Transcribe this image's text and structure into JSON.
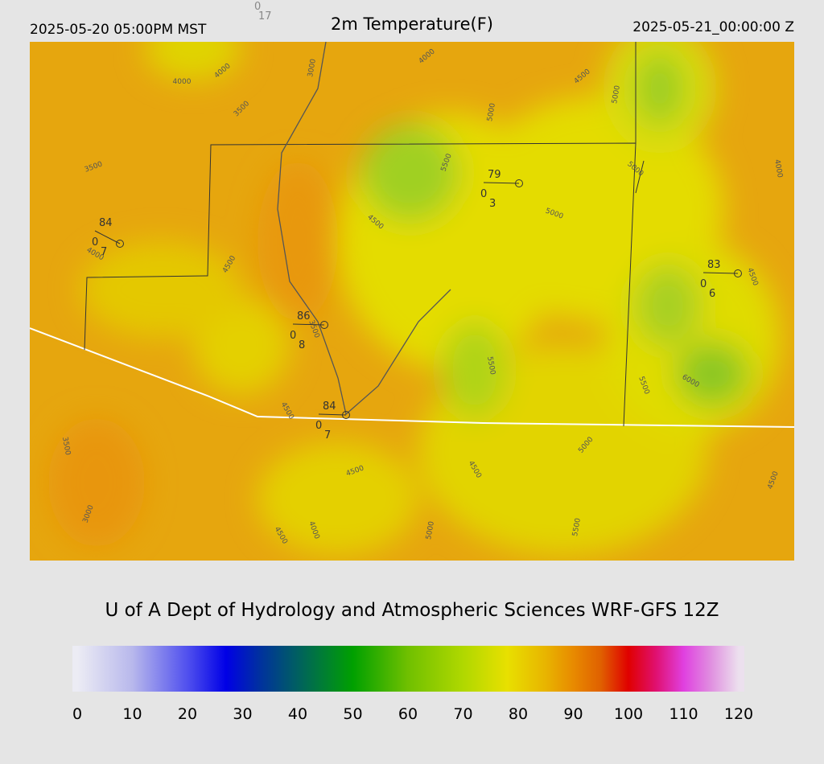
{
  "header": {
    "left": "2025-05-20 05:00PM MST",
    "title": "2m Temperature(F)",
    "right": "2025-05-21_00:00:00 Z",
    "top_small_a": "0",
    "top_small_b": "17"
  },
  "contour_labels": [
    "4000",
    "4000",
    "3000",
    "4000",
    "3500",
    "3500",
    "5500",
    "4500",
    "5000",
    "5000",
    "5000",
    "4000",
    "4000",
    "4500",
    "4500",
    "5000",
    "4500",
    "3500",
    "5500",
    "5500",
    "6000",
    "4500",
    "3500",
    "5000",
    "4500",
    "4500",
    "4500",
    "3000",
    "4000",
    "4500",
    "5000",
    "5500"
  ],
  "stations": [
    {
      "temp": "84",
      "a": "0",
      "b": "7"
    },
    {
      "temp": "79",
      "a": "0",
      "b": "3"
    },
    {
      "temp": "83",
      "a": "0",
      "b": "6"
    },
    {
      "temp": "86",
      "a": "0",
      "b": "8"
    },
    {
      "temp": "84",
      "a": "0",
      "b": "7"
    }
  ],
  "credit": "U of A Dept of Hydrology and Atmospheric Sciences WRF-GFS 12Z",
  "colorbar": {
    "range": [
      0,
      120
    ],
    "ticks": [
      0,
      10,
      20,
      30,
      40,
      50,
      60,
      70,
      80,
      90,
      100,
      110,
      120
    ],
    "stops": [
      {
        "value": 0,
        "color": "#ececf4"
      },
      {
        "value": 10,
        "color": "#b8b8ec"
      },
      {
        "value": 20,
        "color": "#5050ee"
      },
      {
        "value": 27,
        "color": "#0000e6"
      },
      {
        "value": 33,
        "color": "#0030a0"
      },
      {
        "value": 40,
        "color": "#006060"
      },
      {
        "value": 45,
        "color": "#008030"
      },
      {
        "value": 50,
        "color": "#00a000"
      },
      {
        "value": 60,
        "color": "#70c000"
      },
      {
        "value": 70,
        "color": "#b0d800"
      },
      {
        "value": 78,
        "color": "#e8e000"
      },
      {
        "value": 85,
        "color": "#e8b400"
      },
      {
        "value": 90,
        "color": "#e88a00"
      },
      {
        "value": 95,
        "color": "#e06000"
      },
      {
        "value": 100,
        "color": "#e00000"
      },
      {
        "value": 105,
        "color": "#e01070"
      },
      {
        "value": 110,
        "color": "#e040e0"
      },
      {
        "value": 115,
        "color": "#e090e0"
      },
      {
        "value": 120,
        "color": "#ece0ee"
      }
    ]
  }
}
